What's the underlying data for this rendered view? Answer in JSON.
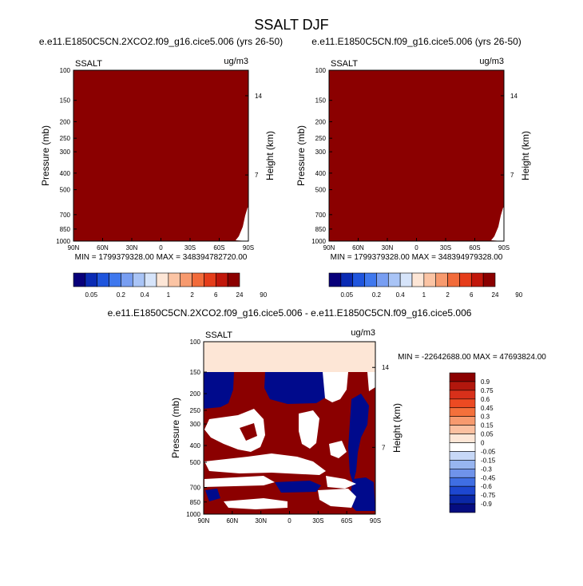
{
  "figure": {
    "title": "SSALT DJF"
  },
  "chart_data": [
    {
      "type": "heatmap",
      "title": "e.e11.E1850C5CN.2XCO2.f09_g16.cice5.006 (yrs 26-50)",
      "left_label": "SSALT",
      "right_label": "ug/m3",
      "ylabel": "Pressure (mb)",
      "ylabel_right": "Height (km)",
      "x_ticks": [
        "90N",
        "60N",
        "30N",
        "0",
        "30S",
        "60S",
        "90S"
      ],
      "y_ticks": [
        "100",
        "150",
        "200",
        "250",
        "300",
        "400",
        "500",
        "700",
        "850",
        "1000"
      ],
      "y_right_ticks": [
        "14",
        "7"
      ],
      "stats": "MIN = 1799379328.00   MAX = 348394782720.00",
      "fill": "all values above 90 (darkest red)",
      "colorbar": {
        "labels": [
          "0.05",
          "0.2",
          "0.4",
          "1",
          "2",
          "6",
          "24",
          "90"
        ],
        "colors": [
          "#08007a",
          "#0a2bb4",
          "#1f55dd",
          "#3f78ee",
          "#789ef2",
          "#a9c4f6",
          "#d6e4fa",
          "#fde6d6",
          "#fbc4a4",
          "#f79a6e",
          "#f26b3a",
          "#e53d1a",
          "#c1170b",
          "#8b0000"
        ]
      }
    },
    {
      "type": "heatmap",
      "title": "e.e11.E1850C5CN.f09_g16.cice5.006 (yrs 26-50)",
      "left_label": "SSALT",
      "right_label": "ug/m3",
      "ylabel": "Pressure (mb)",
      "ylabel_right": "Height (km)",
      "x_ticks": [
        "90N",
        "60N",
        "30N",
        "0",
        "30S",
        "60S",
        "90S"
      ],
      "y_ticks": [
        "100",
        "150",
        "200",
        "250",
        "300",
        "400",
        "500",
        "700",
        "850",
        "1000"
      ],
      "y_right_ticks": [
        "14",
        "7"
      ],
      "stats": "MIN = 1799379328.00   MAX = 348394979328.00",
      "fill": "all values above 90 (darkest red)",
      "colorbar": {
        "labels": [
          "0.05",
          "0.2",
          "0.4",
          "1",
          "2",
          "6",
          "24",
          "90"
        ],
        "colors": [
          "#08007a",
          "#0a2bb4",
          "#1f55dd",
          "#3f78ee",
          "#789ef2",
          "#a9c4f6",
          "#d6e4fa",
          "#fde6d6",
          "#fbc4a4",
          "#f79a6e",
          "#f26b3a",
          "#e53d1a",
          "#c1170b",
          "#8b0000"
        ]
      }
    },
    {
      "type": "heatmap",
      "title": "e.e11.E1850C5CN.2XCO2.f09_g16.cice5.006 - e.e11.E1850C5CN.f09_g16.cice5.006",
      "left_label": "SSALT",
      "right_label": "ug/m3",
      "ylabel": "Pressure (mb)",
      "ylabel_right": "Height (km)",
      "x_ticks": [
        "90N",
        "60N",
        "30N",
        "0",
        "30S",
        "60S",
        "90S"
      ],
      "y_ticks": [
        "100",
        "150",
        "200",
        "250",
        "300",
        "400",
        "500",
        "700",
        "850",
        "1000"
      ],
      "y_right_ticks": [
        "14",
        "7"
      ],
      "stats": "MIN = -22642688.00  MAX = 47693824.00",
      "colorbar": {
        "labels": [
          "0.9",
          "0.75",
          "0.6",
          "0.45",
          "0.3",
          "0.15",
          "0.05",
          "0",
          "-0.05",
          "-0.15",
          "-0.3",
          "-0.45",
          "-0.6",
          "-0.75",
          "-0.9"
        ],
        "colors": [
          "#8b0000",
          "#b2170d",
          "#d8301a",
          "#ec4a22",
          "#f4703b",
          "#f79a6e",
          "#fbc0a0",
          "#fde6d6",
          "#ffffff",
          "#c7d8f7",
          "#97b5f0",
          "#6f93ea",
          "#3f6ee3",
          "#1d47d0",
          "#0a27a6",
          "#050d80"
        ]
      }
    }
  ]
}
